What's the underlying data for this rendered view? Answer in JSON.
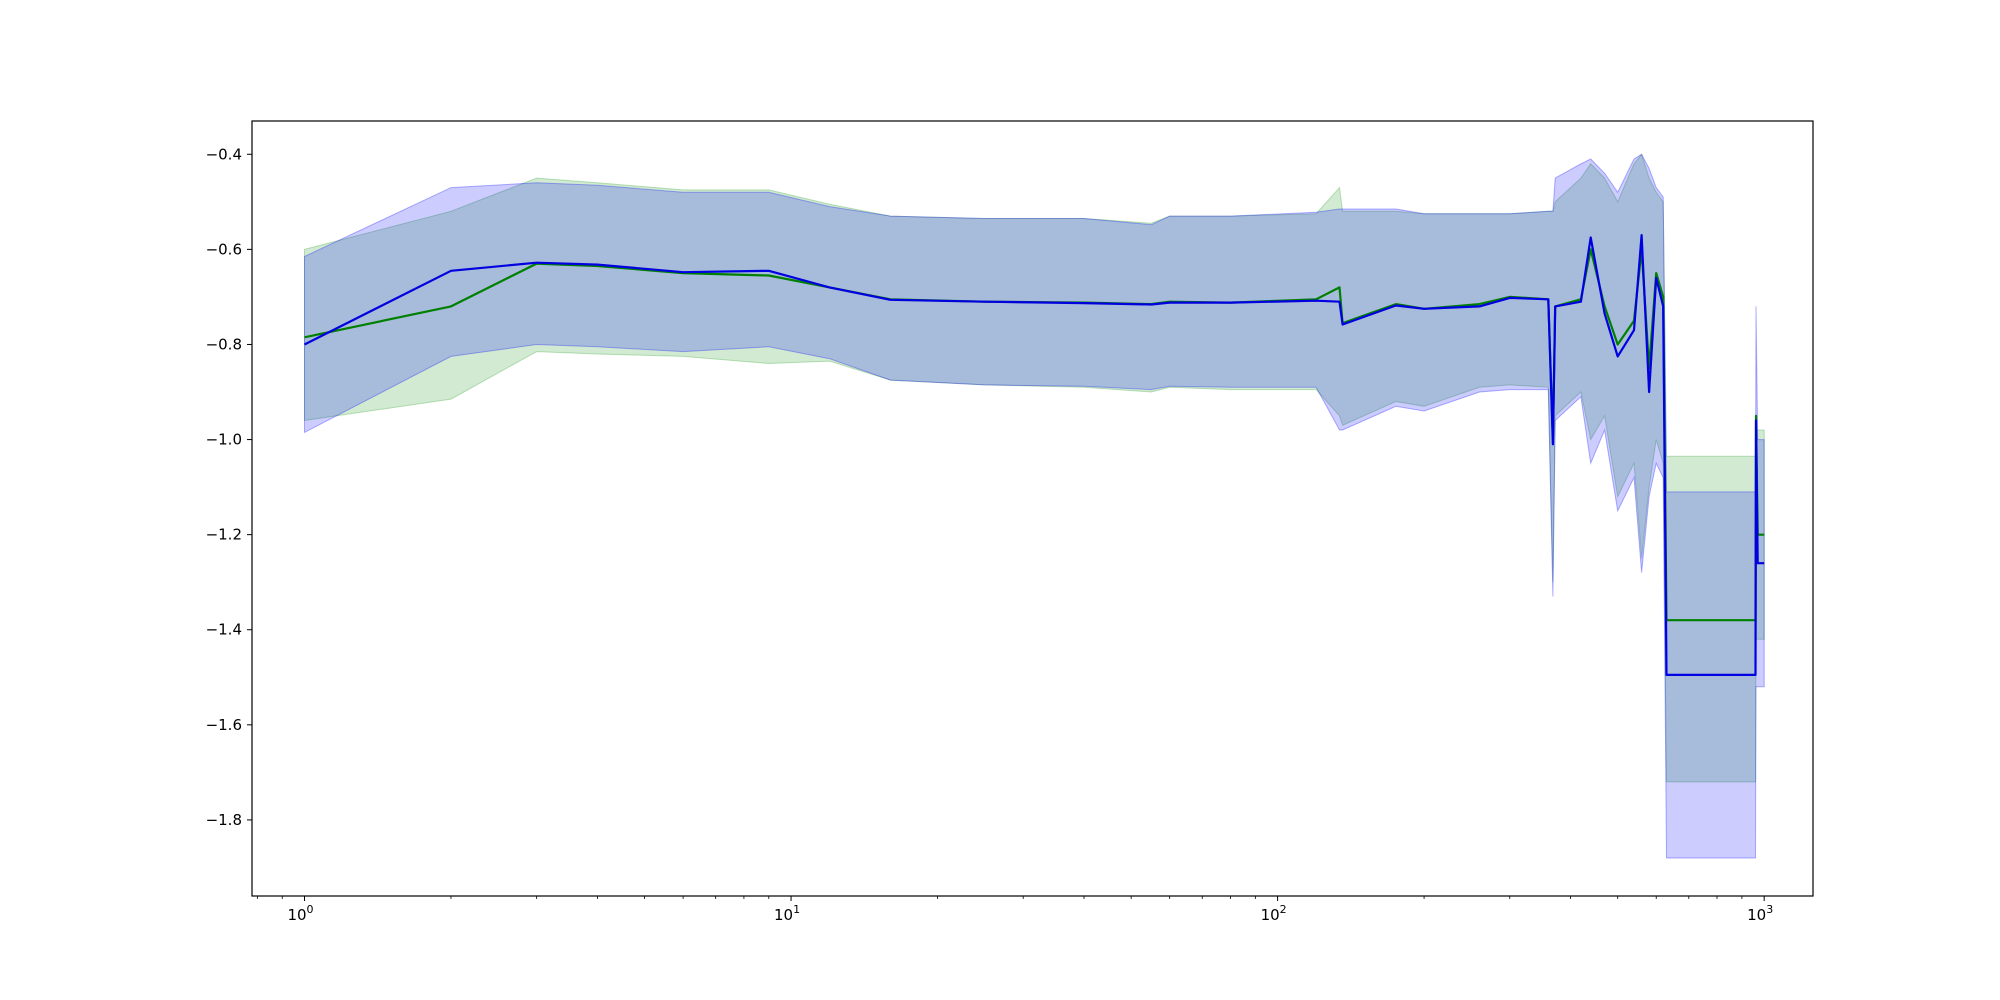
{
  "chart_data": {
    "type": "line",
    "title": "",
    "xlabel": "",
    "ylabel": "",
    "xscale": "log",
    "xlim": [
      0.78,
      1260
    ],
    "ylim": [
      -1.96,
      -0.33
    ],
    "grid": false,
    "legend": "none",
    "xticks": [
      {
        "base": "10",
        "exp": "0",
        "value": 1
      },
      {
        "base": "10",
        "exp": "1",
        "value": 10
      },
      {
        "base": "10",
        "exp": "2",
        "value": 100
      },
      {
        "base": "10",
        "exp": "3",
        "value": 1000
      }
    ],
    "yticks": [
      "−0.4",
      "−0.6",
      "−0.8",
      "−1.0",
      "−1.2",
      "−1.4",
      "−1.6",
      "−1.8"
    ],
    "ytick_values": [
      -0.4,
      -0.6,
      -0.8,
      -1.0,
      -1.2,
      -1.4,
      -1.6,
      -1.8
    ],
    "series": [
      {
        "color": "#008000",
        "band_color": "#2ca02c",
        "x": [
          1,
          2,
          3,
          4,
          6,
          9,
          12,
          16,
          25,
          40,
          55,
          60,
          80,
          120,
          134,
          136,
          175,
          200,
          260,
          300,
          360,
          368,
          372,
          420,
          440,
          470,
          500,
          540,
          560,
          580,
          600,
          620,
          630,
          960,
          962,
          970,
          1000
        ],
        "y": [
          -0.785,
          -0.72,
          -0.63,
          -0.635,
          -0.65,
          -0.655,
          -0.68,
          -0.705,
          -0.71,
          -0.712,
          -0.715,
          -0.71,
          -0.712,
          -0.705,
          -0.68,
          -0.755,
          -0.715,
          -0.725,
          -0.715,
          -0.7,
          -0.705,
          -1.0,
          -0.72,
          -0.705,
          -0.6,
          -0.72,
          -0.8,
          -0.75,
          -0.6,
          -0.85,
          -0.65,
          -0.7,
          -1.38,
          -1.38,
          -0.95,
          -1.2,
          -1.2
        ],
        "lower": [
          -0.96,
          -0.915,
          -0.815,
          -0.82,
          -0.825,
          -0.84,
          -0.835,
          -0.875,
          -0.885,
          -0.89,
          -0.9,
          -0.89,
          -0.895,
          -0.895,
          -0.95,
          -0.97,
          -0.92,
          -0.93,
          -0.89,
          -0.885,
          -0.89,
          -1.3,
          -0.95,
          -0.9,
          -1.0,
          -0.95,
          -1.12,
          -1.05,
          -1.25,
          -1.1,
          -1.0,
          -1.05,
          -1.72,
          -1.72,
          -1.42,
          -1.42,
          -1.42
        ],
        "upper": [
          -0.6,
          -0.52,
          -0.45,
          -0.46,
          -0.475,
          -0.475,
          -0.505,
          -0.53,
          -0.535,
          -0.535,
          -0.545,
          -0.53,
          -0.53,
          -0.525,
          -0.47,
          -0.52,
          -0.52,
          -0.525,
          -0.525,
          -0.525,
          -0.52,
          -0.52,
          -0.5,
          -0.45,
          -0.42,
          -0.45,
          -0.5,
          -0.42,
          -0.4,
          -0.45,
          -0.48,
          -0.5,
          -1.035,
          -1.035,
          -0.98,
          -0.98,
          -0.98
        ]
      },
      {
        "color": "#0000e0",
        "band_color": "#0000ff",
        "x": [
          1,
          2,
          3,
          4,
          6,
          9,
          12,
          16,
          25,
          40,
          55,
          60,
          80,
          120,
          134,
          136,
          175,
          200,
          260,
          300,
          360,
          368,
          372,
          420,
          440,
          470,
          500,
          540,
          560,
          580,
          600,
          620,
          630,
          960,
          962,
          970,
          1000
        ],
        "y": [
          -0.8,
          -0.645,
          -0.628,
          -0.632,
          -0.648,
          -0.645,
          -0.68,
          -0.706,
          -0.71,
          -0.713,
          -0.716,
          -0.712,
          -0.712,
          -0.708,
          -0.71,
          -0.758,
          -0.718,
          -0.725,
          -0.72,
          -0.702,
          -0.705,
          -1.01,
          -0.72,
          -0.71,
          -0.575,
          -0.735,
          -0.825,
          -0.77,
          -0.57,
          -0.9,
          -0.66,
          -0.72,
          -1.495,
          -1.495,
          -0.96,
          -1.26,
          -1.26
        ],
        "lower": [
          -0.985,
          -0.825,
          -0.8,
          -0.805,
          -0.815,
          -0.805,
          -0.83,
          -0.875,
          -0.885,
          -0.888,
          -0.895,
          -0.888,
          -0.89,
          -0.89,
          -0.98,
          -0.98,
          -0.93,
          -0.94,
          -0.9,
          -0.895,
          -0.895,
          -1.33,
          -0.96,
          -0.91,
          -1.05,
          -0.98,
          -1.15,
          -1.08,
          -1.28,
          -1.12,
          -1.05,
          -1.08,
          -1.88,
          -1.88,
          -1.52,
          -1.52,
          -1.52
        ],
        "upper": [
          -0.615,
          -0.47,
          -0.46,
          -0.465,
          -0.48,
          -0.48,
          -0.51,
          -0.53,
          -0.535,
          -0.535,
          -0.548,
          -0.53,
          -0.53,
          -0.522,
          -0.515,
          -0.515,
          -0.515,
          -0.525,
          -0.525,
          -0.525,
          -0.52,
          -0.52,
          -0.45,
          -0.42,
          -0.41,
          -0.44,
          -0.48,
          -0.41,
          -0.4,
          -0.43,
          -0.47,
          -0.49,
          -1.11,
          -1.11,
          -0.72,
          -1.0,
          -1.0
        ]
      }
    ]
  }
}
